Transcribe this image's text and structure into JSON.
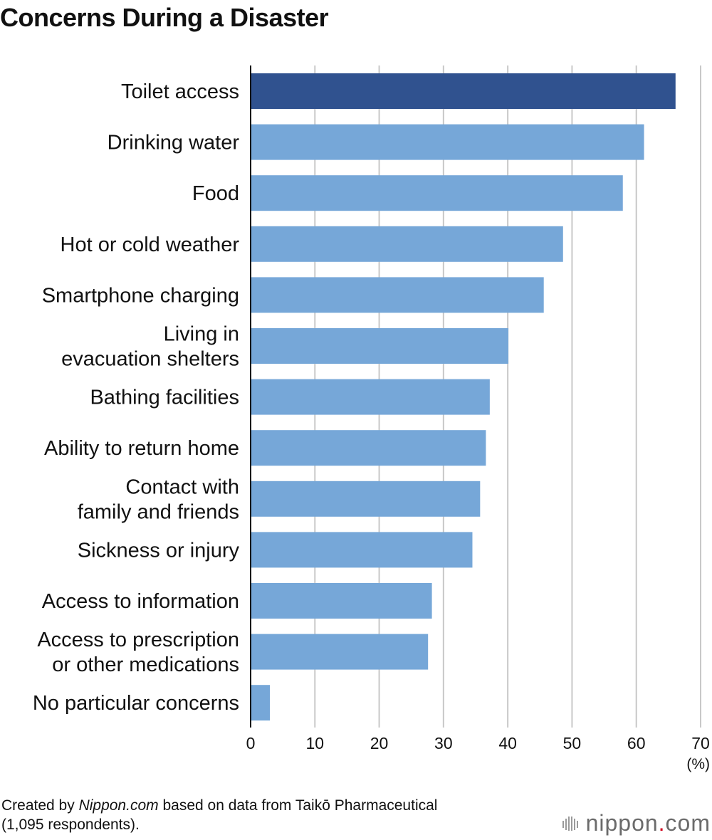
{
  "title": "Concerns During a Disaster",
  "chart_data": {
    "type": "bar",
    "orientation": "horizontal",
    "title": "Concerns During a Disaster",
    "categories": [
      [
        "Toilet access"
      ],
      [
        "Drinking water"
      ],
      [
        "Food"
      ],
      [
        "Hot or cold weather"
      ],
      [
        "Smartphone charging"
      ],
      [
        "Living in",
        "evacuation shelters"
      ],
      [
        "Bathing facilities"
      ],
      [
        "Ability to return home"
      ],
      [
        "Contact with",
        "family and friends"
      ],
      [
        "Sickness or injury"
      ],
      [
        "Access to information"
      ],
      [
        "Access to prescription",
        "or other medications"
      ],
      [
        "No particular concerns"
      ]
    ],
    "values": [
      66.1,
      61.2,
      57.9,
      48.6,
      45.6,
      40.1,
      37.2,
      36.6,
      35.7,
      34.5,
      28.2,
      27.6,
      3.0
    ],
    "xlim": [
      0,
      70
    ],
    "xticks": [
      0,
      10,
      20,
      30,
      40,
      50,
      60,
      70
    ],
    "unit": "(%)",
    "grid": true,
    "colors": {
      "highlight": "#30528f",
      "bar": "#76a7d8",
      "grid": "#c8c8c8",
      "axis": "#111111"
    }
  },
  "footnote": {
    "prefix": "Created by ",
    "source_site": "Nippon.com",
    "suffix": " based on data from Taikō Pharmaceutical",
    "line2": "(1,095 respondents)."
  },
  "brand": {
    "name": "nippon",
    "dot": ".",
    "tld": "com",
    "mark_icon": "nippon-logo-bars-icon"
  }
}
